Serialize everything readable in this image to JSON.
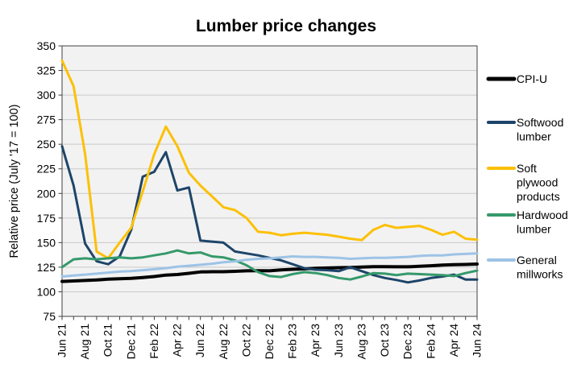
{
  "chart_data": {
    "type": "line",
    "title": "Lumber price changes",
    "ylabel": "Relative price (July '17 = 100)",
    "ylim": [
      75,
      350
    ],
    "ytick_step": 25,
    "x_label_every": 2,
    "grid": "horizontal",
    "legend_position": "right",
    "colors": {
      "plot_bg": "#f2f2f2",
      "grid": "#c9c9c9",
      "axis": "#404040",
      "text": "#000000"
    },
    "x": [
      "Jun 21",
      "Jul 21",
      "Aug 21",
      "Sep 21",
      "Oct 21",
      "Nov 21",
      "Dec 21",
      "Jan 22",
      "Feb 22",
      "Mar 22",
      "Apr 22",
      "May 22",
      "Jun 22",
      "Jul 22",
      "Aug 22",
      "Sep 22",
      "Oct 22",
      "Nov 22",
      "Dec 22",
      "Jan 23",
      "Feb 23",
      "Mar 23",
      "Apr 23",
      "May 23",
      "Jun 23",
      "Jul 23",
      "Aug 23",
      "Sep 23",
      "Oct 23",
      "Nov 23",
      "Dec 23",
      "Jan 24",
      "Feb 24",
      "Mar 24",
      "Apr 24",
      "May 24",
      "Jun 24"
    ],
    "series": [
      {
        "name": "CPI-U",
        "color": "#000000",
        "stroke_width": 4,
        "values": [
          110.5,
          111,
          111.5,
          112,
          112.8,
          113.2,
          113.6,
          114.5,
          115.5,
          117,
          117.6,
          118.8,
          120.2,
          120.4,
          120.4,
          120.8,
          121.3,
          121.4,
          121.3,
          122.3,
          122.9,
          123.3,
          123.9,
          124.2,
          124.5,
          124.7,
          125.2,
          125.6,
          125.5,
          125.4,
          125.4,
          125.9,
          126.5,
          127.2,
          127.6,
          127.8,
          128.2
        ]
      },
      {
        "name": "Softwood lumber",
        "color": "#1e4569",
        "stroke_width": 3,
        "values": [
          248,
          208,
          149,
          131,
          128,
          136,
          163,
          217,
          222,
          242,
          203,
          206,
          152,
          151,
          150,
          141,
          139,
          137,
          134.5,
          132,
          128,
          124,
          122.5,
          122,
          121,
          125,
          121,
          117,
          114,
          112,
          109.5,
          111.5,
          114,
          115.5,
          117.5,
          112.5,
          112.5
        ]
      },
      {
        "name": "Soft plywood products",
        "color": "#fcc006",
        "stroke_width": 3,
        "values": [
          335,
          309,
          240,
          141,
          134,
          150,
          165,
          202,
          240,
          268,
          248,
          221,
          208,
          197,
          186,
          183,
          175,
          161,
          160,
          157.5,
          159,
          160,
          159,
          158,
          156,
          154,
          152.5,
          163,
          168,
          165,
          166,
          167,
          163,
          158,
          161,
          154,
          153
        ]
      },
      {
        "name": "Hardwood lumber",
        "color": "#35996b",
        "stroke_width": 3,
        "values": [
          125,
          133,
          134,
          133,
          134,
          135,
          134,
          135,
          137,
          139,
          142,
          139,
          140,
          136,
          135,
          132,
          127,
          120,
          116,
          115,
          118,
          120,
          119,
          117,
          114,
          112.5,
          115.5,
          119,
          118.5,
          117,
          118.5,
          118,
          117.5,
          117,
          116,
          119,
          121.5
        ]
      },
      {
        "name": "General millworks",
        "color": "#9dc3e6",
        "stroke_width": 3,
        "values": [
          115.5,
          116.5,
          117.5,
          118.5,
          119.5,
          120.5,
          121,
          122,
          123,
          124,
          125.5,
          126.5,
          127.5,
          128.5,
          130,
          131,
          132.5,
          133.5,
          134,
          135,
          136,
          135.5,
          135.5,
          135,
          134.5,
          133.5,
          134,
          134.5,
          134.5,
          135,
          135.5,
          136.5,
          137,
          137,
          138,
          138.5,
          139
        ]
      }
    ]
  }
}
